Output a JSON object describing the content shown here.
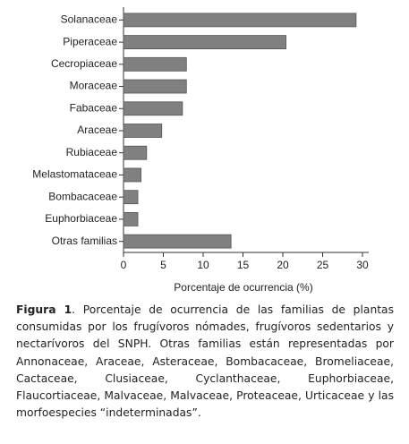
{
  "chart_data": {
    "type": "barh",
    "xlabel": "Porcentaje de ocurrencia (%)",
    "categories": [
      "Solanaceae",
      "Piperaceae",
      "Cecropiaceae",
      "Moraceae",
      "Fabaceae",
      "Araceae",
      "Rubiaceae",
      "Melastomataceae",
      "Bombacaceae",
      "Euphorbiaceae",
      "Otras familias"
    ],
    "values": [
      29.2,
      20.4,
      7.9,
      7.9,
      7.4,
      4.8,
      2.9,
      2.2,
      1.8,
      1.8,
      13.5
    ],
    "color": "#808080",
    "xlim": [
      0,
      30
    ],
    "xticks": [
      0,
      5,
      10,
      15,
      20,
      25,
      30
    ],
    "grid": false
  },
  "caption": {
    "label": "Figura 1",
    "text": ". Porcentaje de ocurrencia de las familias de plantas consumidas por los frugívoros nómades, frugívoros sedentarios y nectarívoros del SNPH. Otras familias están representadas por Annonaceae, Araceae, Asteraceae, Bombacaceae, Bromeliaceae, Cactaceae, Clusiaceae, Cyclanthaceae, Euphorbiaceae, Flaucortiaceae, Malvaceae, Malvaceae, Proteaceae, Urticaceae y las morfoespecies “indeterminadas”."
  }
}
